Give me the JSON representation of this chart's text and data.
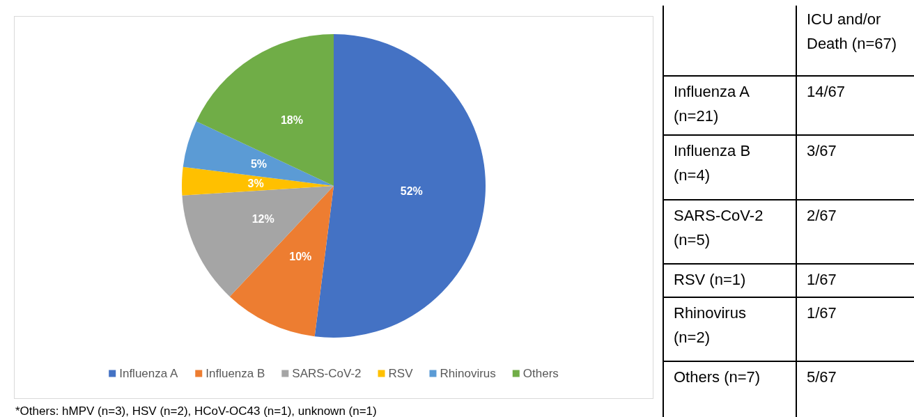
{
  "chart_data": [
    {
      "type": "pie",
      "categories": [
        "Influenza A",
        "Influenza B",
        "SARS-CoV-2",
        "RSV",
        "Rhinovirus",
        "Others"
      ],
      "values": [
        52,
        10,
        12,
        3,
        5,
        18
      ],
      "value_labels": [
        "52%",
        "10%",
        "12%",
        "3%",
        "5%",
        "18%"
      ],
      "colors": [
        "#4472c4",
        "#ed7d31",
        "#a5a5a5",
        "#ffc000",
        "#5b9bd5",
        "#70ad47"
      ],
      "legend": "bottom",
      "annotations": [
        "*Others: hMPV (n=3), HSV (n=2), HCoV-OC43 (n=1), unknown (n=1)"
      ]
    },
    {
      "type": "other",
      "annotations": [
        "ICU and/or Death (n=67)",
        "Influenza A (n=21)",
        "14/67",
        "Influenza B (n=4)",
        "3/67",
        "SARS-CoV-2 (n=5)",
        "2/67",
        "RSV (n=1)",
        "1/67",
        "Rhinovirus (n=2)",
        "1/67",
        "Others (n=7)",
        "5/67"
      ]
    }
  ]
}
